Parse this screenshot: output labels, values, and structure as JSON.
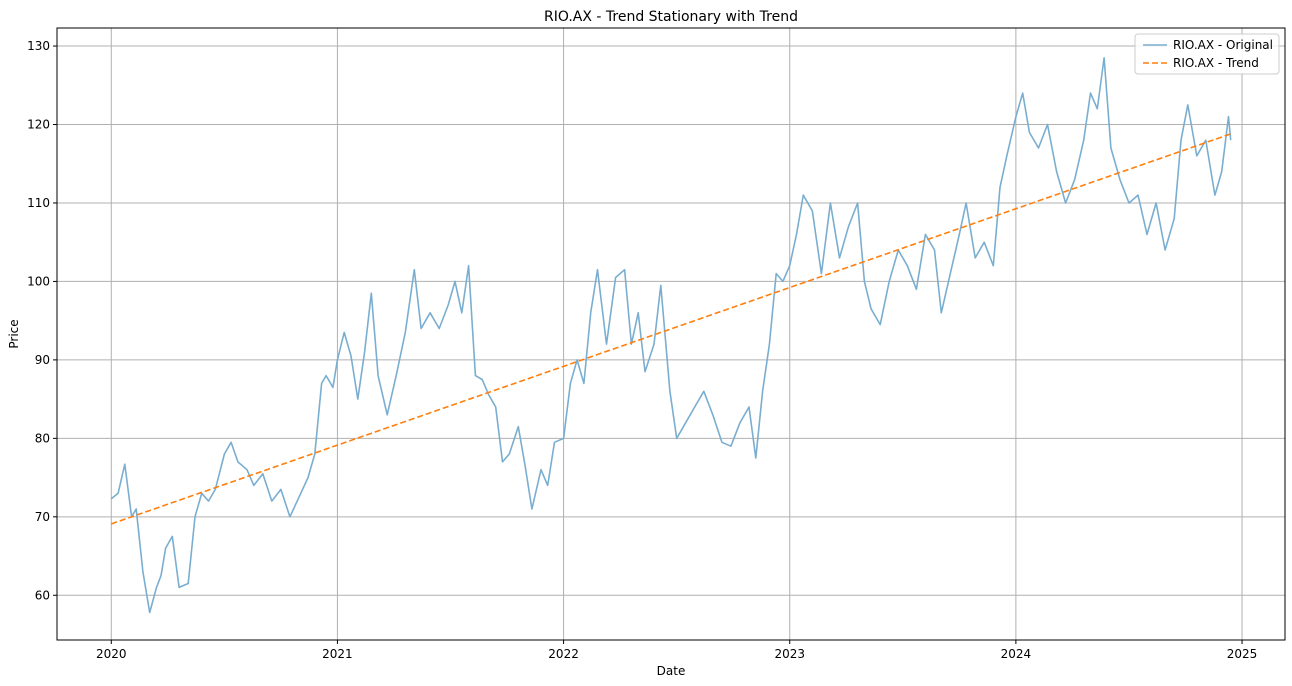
{
  "chart_data": {
    "type": "line",
    "title": "RIO.AX - Trend Stationary with Trend",
    "xlabel": "Date",
    "ylabel": "Price",
    "xlim": [
      2019.76,
      2025.19
    ],
    "ylim": [
      54.3,
      132.3
    ],
    "x_ticks": [
      2020,
      2021,
      2022,
      2023,
      2024,
      2025
    ],
    "x_tick_labels": [
      "2020",
      "2021",
      "2022",
      "2023",
      "2024",
      "2025"
    ],
    "y_ticks": [
      60,
      70,
      80,
      90,
      100,
      110,
      120,
      130
    ],
    "y_tick_labels": [
      "60",
      "70",
      "80",
      "90",
      "100",
      "110",
      "120",
      "130"
    ],
    "grid": true,
    "legend_position": "top-right",
    "series": [
      {
        "name": "RIO.AX - Original",
        "style": "solid",
        "color": "#7aaed0",
        "x": [
          2020.0,
          2020.03,
          2020.06,
          2020.09,
          2020.11,
          2020.14,
          2020.17,
          2020.2,
          2020.22,
          2020.24,
          2020.27,
          2020.3,
          2020.34,
          2020.37,
          2020.4,
          2020.43,
          2020.46,
          2020.5,
          2020.53,
          2020.56,
          2020.6,
          2020.63,
          2020.67,
          2020.71,
          2020.75,
          2020.79,
          2020.83,
          2020.87,
          2020.9,
          2020.93,
          2020.95,
          2020.98,
          2021.0,
          2021.03,
          2021.06,
          2021.09,
          2021.12,
          2021.15,
          2021.18,
          2021.22,
          2021.26,
          2021.3,
          2021.34,
          2021.37,
          2021.41,
          2021.45,
          2021.49,
          2021.52,
          2021.55,
          2021.58,
          2021.61,
          2021.64,
          2021.67,
          2021.7,
          2021.73,
          2021.76,
          2021.8,
          2021.83,
          2021.86,
          2021.9,
          2021.93,
          2021.96,
          2022.0,
          2022.03,
          2022.06,
          2022.09,
          2022.12,
          2022.15,
          2022.19,
          2022.23,
          2022.27,
          2022.3,
          2022.33,
          2022.36,
          2022.4,
          2022.43,
          2022.47,
          2022.5,
          2022.54,
          2022.58,
          2022.62,
          2022.66,
          2022.7,
          2022.74,
          2022.78,
          2022.82,
          2022.85,
          2022.88,
          2022.91,
          2022.94,
          2022.97,
          2023.0,
          2023.03,
          2023.06,
          2023.1,
          2023.14,
          2023.18,
          2023.22,
          2023.26,
          2023.3,
          2023.33,
          2023.36,
          2023.4,
          2023.44,
          2023.48,
          2023.52,
          2023.56,
          2023.6,
          2023.64,
          2023.67,
          2023.71,
          2023.75,
          2023.78,
          2023.82,
          2023.86,
          2023.9,
          2023.93,
          2023.96,
          2024.0,
          2024.03,
          2024.06,
          2024.1,
          2024.14,
          2024.18,
          2024.22,
          2024.26,
          2024.3,
          2024.33,
          2024.36,
          2024.39,
          2024.42,
          2024.46,
          2024.5,
          2024.54,
          2024.58,
          2024.62,
          2024.66,
          2024.7,
          2024.73,
          2024.76,
          2024.8,
          2024.84,
          2024.88,
          2024.91,
          2024.94,
          2024.95
        ],
        "y": [
          72.3,
          73.0,
          76.7,
          70.0,
          71.0,
          63.0,
          57.8,
          61.0,
          62.5,
          66.0,
          67.5,
          61.0,
          61.5,
          70.0,
          73.0,
          72.0,
          73.5,
          78.0,
          79.5,
          77.0,
          76.0,
          74.0,
          75.5,
          72.0,
          73.5,
          70.0,
          72.5,
          75.0,
          78.0,
          87.0,
          88.0,
          86.5,
          90.0,
          93.5,
          90.5,
          85.0,
          91.0,
          98.5,
          88.0,
          83.0,
          88.0,
          93.5,
          101.5,
          94.0,
          96.0,
          94.0,
          97.0,
          100.0,
          96.0,
          102.0,
          88.0,
          87.5,
          85.5,
          84.0,
          77.0,
          78.0,
          81.5,
          76.5,
          71.0,
          76.0,
          74.0,
          79.5,
          80.0,
          87.0,
          90.0,
          87.0,
          96.0,
          101.5,
          92.0,
          100.5,
          101.5,
          92.0,
          96.0,
          88.5,
          92.0,
          99.5,
          86.0,
          80.0,
          82.0,
          84.0,
          86.0,
          83.0,
          79.5,
          79.0,
          82.0,
          84.0,
          77.5,
          86.0,
          92.0,
          101.0,
          100.0,
          102.0,
          106.0,
          111.0,
          109.0,
          101.0,
          110.0,
          103.0,
          107.0,
          110.0,
          100.0,
          96.5,
          94.5,
          100.0,
          104.0,
          102.0,
          99.0,
          106.0,
          104.0,
          96.0,
          101.0,
          106.0,
          110.0,
          103.0,
          105.0,
          102.0,
          112.0,
          116.0,
          121.0,
          124.0,
          119.0,
          117.0,
          120.0,
          114.0,
          110.0,
          113.0,
          118.0,
          124.0,
          122.0,
          128.5,
          117.0,
          113.0,
          110.0,
          111.0,
          106.0,
          110.0,
          104.0,
          108.0,
          118.0,
          122.5,
          116.0,
          118.0,
          111.0,
          114.0,
          121.0,
          118.0
        ]
      },
      {
        "name": "RIO.AX - Trend",
        "style": "dashed",
        "color": "#ff7f0e",
        "x": [
          2020.0,
          2024.95
        ],
        "y": [
          69.1,
          118.8
        ]
      }
    ]
  }
}
